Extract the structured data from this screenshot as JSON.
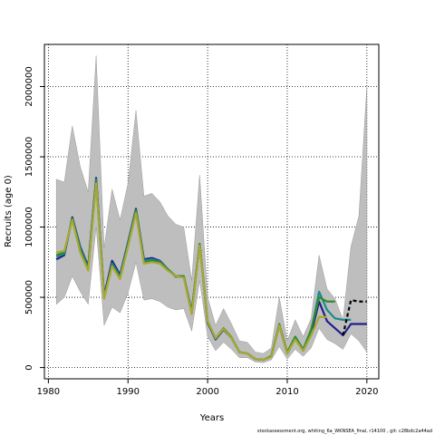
{
  "chart_data": {
    "type": "line",
    "title": "",
    "xlabel": "Years",
    "ylabel": "Recruits (age 0)",
    "xlim": [
      1979.5,
      2021.5
    ],
    "ylim": [
      -80000,
      2300000
    ],
    "xticks": [
      1980,
      1990,
      2000,
      2010,
      2020
    ],
    "yticks": [
      0,
      500000,
      1000000,
      1500000,
      2000000
    ],
    "grid": true,
    "x": [
      1981,
      1982,
      1983,
      1984,
      1985,
      1986,
      1987,
      1988,
      1989,
      1990,
      1991,
      1992,
      1993,
      1994,
      1995,
      1996,
      1997,
      1998,
      1999,
      2000,
      2001,
      2002,
      2003,
      2004,
      2005,
      2006,
      2007,
      2008,
      2009,
      2010,
      2011,
      2012,
      2013,
      2014,
      2015,
      2016,
      2017,
      2018,
      2019,
      2020
    ],
    "band": {
      "upper": [
        1340000,
        1320000,
        1720000,
        1430000,
        1250000,
        2220000,
        850000,
        1270000,
        1050000,
        1310000,
        1830000,
        1220000,
        1240000,
        1180000,
        1080000,
        1020000,
        1000000,
        620000,
        1370000,
        500000,
        300000,
        420000,
        310000,
        190000,
        180000,
        110000,
        100000,
        140000,
        500000,
        190000,
        340000,
        220000,
        350000,
        800000,
        560000,
        490000,
        340000,
        860000,
        1080000,
        2000000
      ],
      "lower": [
        450000,
        500000,
        650000,
        540000,
        450000,
        1000000,
        300000,
        430000,
        390000,
        530000,
        750000,
        480000,
        490000,
        470000,
        430000,
        410000,
        420000,
        260000,
        620000,
        220000,
        120000,
        180000,
        130000,
        70000,
        70000,
        40000,
        35000,
        55000,
        150000,
        60000,
        130000,
        80000,
        140000,
        280000,
        200000,
        170000,
        130000,
        240000,
        190000,
        110000
      ]
    },
    "series": [
      {
        "name": "",
        "color": "#1f1f8c",
        "values": [
          770000,
          800000,
          1070000,
          860000,
          720000,
          1350000,
          510000,
          760000,
          660000,
          890000,
          1130000,
          770000,
          780000,
          760000,
          700000,
          650000,
          650000,
          400000,
          880000,
          320000,
          200000,
          270000,
          210000,
          110000,
          100000,
          60000,
          55000,
          80000,
          300000,
          100000,
          210000,
          120000,
          240000,
          470000,
          330000,
          280000,
          230000,
          310000,
          310000,
          310000
        ]
      },
      {
        "name": "",
        "color": "#1a8c8c",
        "values": [
          790000,
          810000,
          1060000,
          850000,
          710000,
          1340000,
          500000,
          740000,
          650000,
          880000,
          1120000,
          760000,
          770000,
          755000,
          700000,
          645000,
          650000,
          395000,
          875000,
          325000,
          205000,
          275000,
          210000,
          110000,
          100000,
          60000,
          55000,
          80000,
          305000,
          105000,
          215000,
          125000,
          260000,
          540000,
          410000,
          350000,
          340000,
          340000,
          "",
          ""
        ]
      },
      {
        "name": "",
        "color": "#2e8b2e",
        "values": [
          800000,
          820000,
          1060000,
          840000,
          700000,
          1330000,
          500000,
          730000,
          640000,
          870000,
          1120000,
          750000,
          760000,
          750000,
          700000,
          650000,
          650000,
          390000,
          880000,
          330000,
          210000,
          280000,
          215000,
          110000,
          100000,
          60000,
          55000,
          80000,
          310000,
          110000,
          220000,
          130000,
          270000,
          500000,
          470000,
          470000,
          "",
          "",
          "",
          ""
        ]
      },
      {
        "name": "",
        "color": "#a8a832",
        "values": [
          820000,
          830000,
          1050000,
          820000,
          690000,
          1310000,
          490000,
          720000,
          630000,
          860000,
          1100000,
          740000,
          750000,
          740000,
          690000,
          650000,
          640000,
          380000,
          870000,
          330000,
          210000,
          275000,
          210000,
          110000,
          100000,
          60000,
          55000,
          75000,
          300000,
          100000,
          200000,
          120000,
          230000,
          360000,
          360000,
          "",
          "",
          "",
          "",
          ""
        ]
      },
      {
        "name": "",
        "color": "#000000",
        "dashed": true,
        "values": [
          "",
          "",
          "",
          "",
          "",
          "",
          "",
          "",
          "",
          "",
          "",
          "",
          "",
          "",
          "",
          "",
          "",
          "",
          "",
          "",
          "",
          "",
          "",
          "",
          "",
          "",
          "",
          "",
          "",
          "",
          "",
          "",
          "",
          "",
          "",
          "",
          230000,
          480000,
          470000,
          470000
        ]
      }
    ]
  },
  "footer": "stockassessment.org, whiting_6a_WKNSEA_final, r14100 , git: c28bdc2a44ad"
}
